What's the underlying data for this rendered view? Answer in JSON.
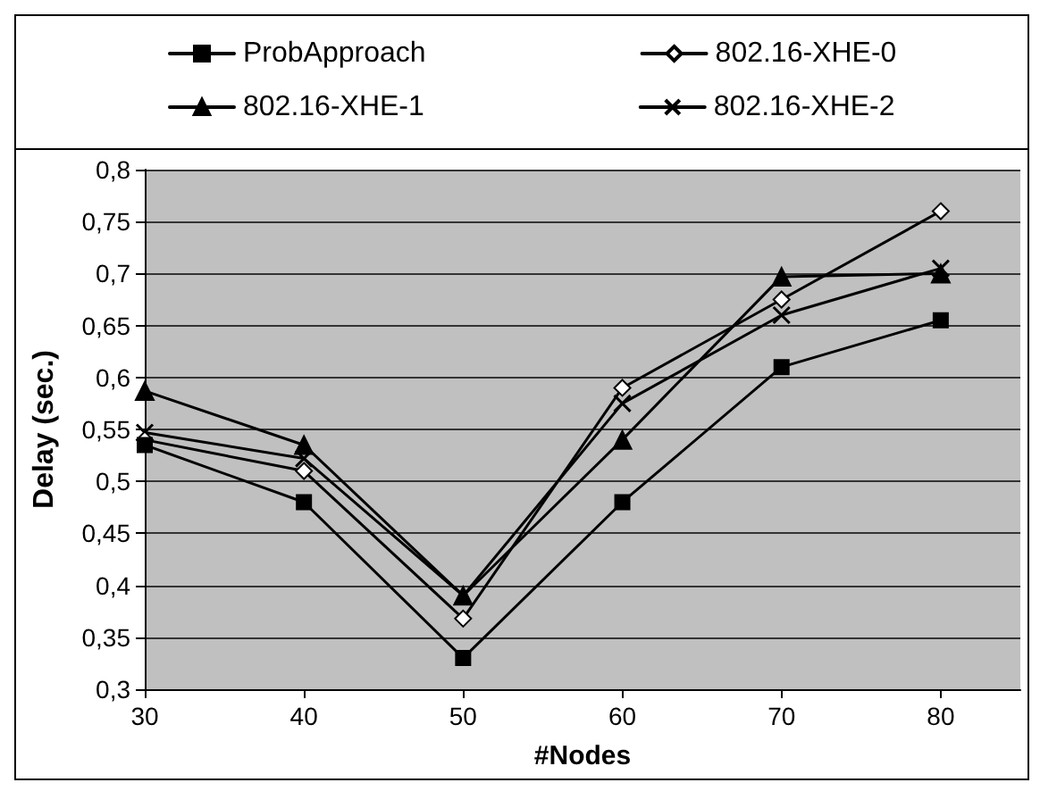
{
  "chart_data": {
    "type": "line",
    "xlabel": "#Nodes",
    "ylabel": "Delay (sec.)",
    "x": [
      30,
      40,
      50,
      60,
      70,
      80
    ],
    "xlim": [
      30,
      85
    ],
    "xticks": [
      30,
      40,
      50,
      60,
      70,
      80
    ],
    "ylim": [
      0.3,
      0.8
    ],
    "yticks": [
      {
        "value": 0.3,
        "label": "0,3"
      },
      {
        "value": 0.35,
        "label": "0,35"
      },
      {
        "value": 0.4,
        "label": "0,4"
      },
      {
        "value": 0.45,
        "label": "0,45"
      },
      {
        "value": 0.5,
        "label": "0,5"
      },
      {
        "value": 0.55,
        "label": "0,55"
      },
      {
        "value": 0.6,
        "label": "0,6"
      },
      {
        "value": 0.65,
        "label": "0,65"
      },
      {
        "value": 0.7,
        "label": "0,7"
      },
      {
        "value": 0.75,
        "label": "0,75"
      },
      {
        "value": 0.8,
        "label": "0,8"
      }
    ],
    "grid": "y",
    "legend": "top",
    "line_style": "solid",
    "series": [
      {
        "name": "ProbApproach",
        "color": "#000000",
        "marker": "square",
        "values": [
          0.535,
          0.48,
          0.33,
          0.48,
          0.61,
          0.655
        ]
      },
      {
        "name": "802.16-XHE-0",
        "color": "#000000",
        "marker": "diamond",
        "values": [
          0.54,
          0.51,
          0.368,
          0.59,
          0.675,
          0.76
        ]
      },
      {
        "name": "802.16-XHE-1",
        "color": "#000000",
        "marker": "triangle",
        "values": [
          0.587,
          0.535,
          0.39,
          0.54,
          0.697,
          0.7
        ]
      },
      {
        "name": "802.16-XHE-2",
        "color": "#000000",
        "marker": "cross",
        "values": [
          0.547,
          0.522,
          0.39,
          0.575,
          0.66,
          0.705
        ]
      }
    ]
  }
}
